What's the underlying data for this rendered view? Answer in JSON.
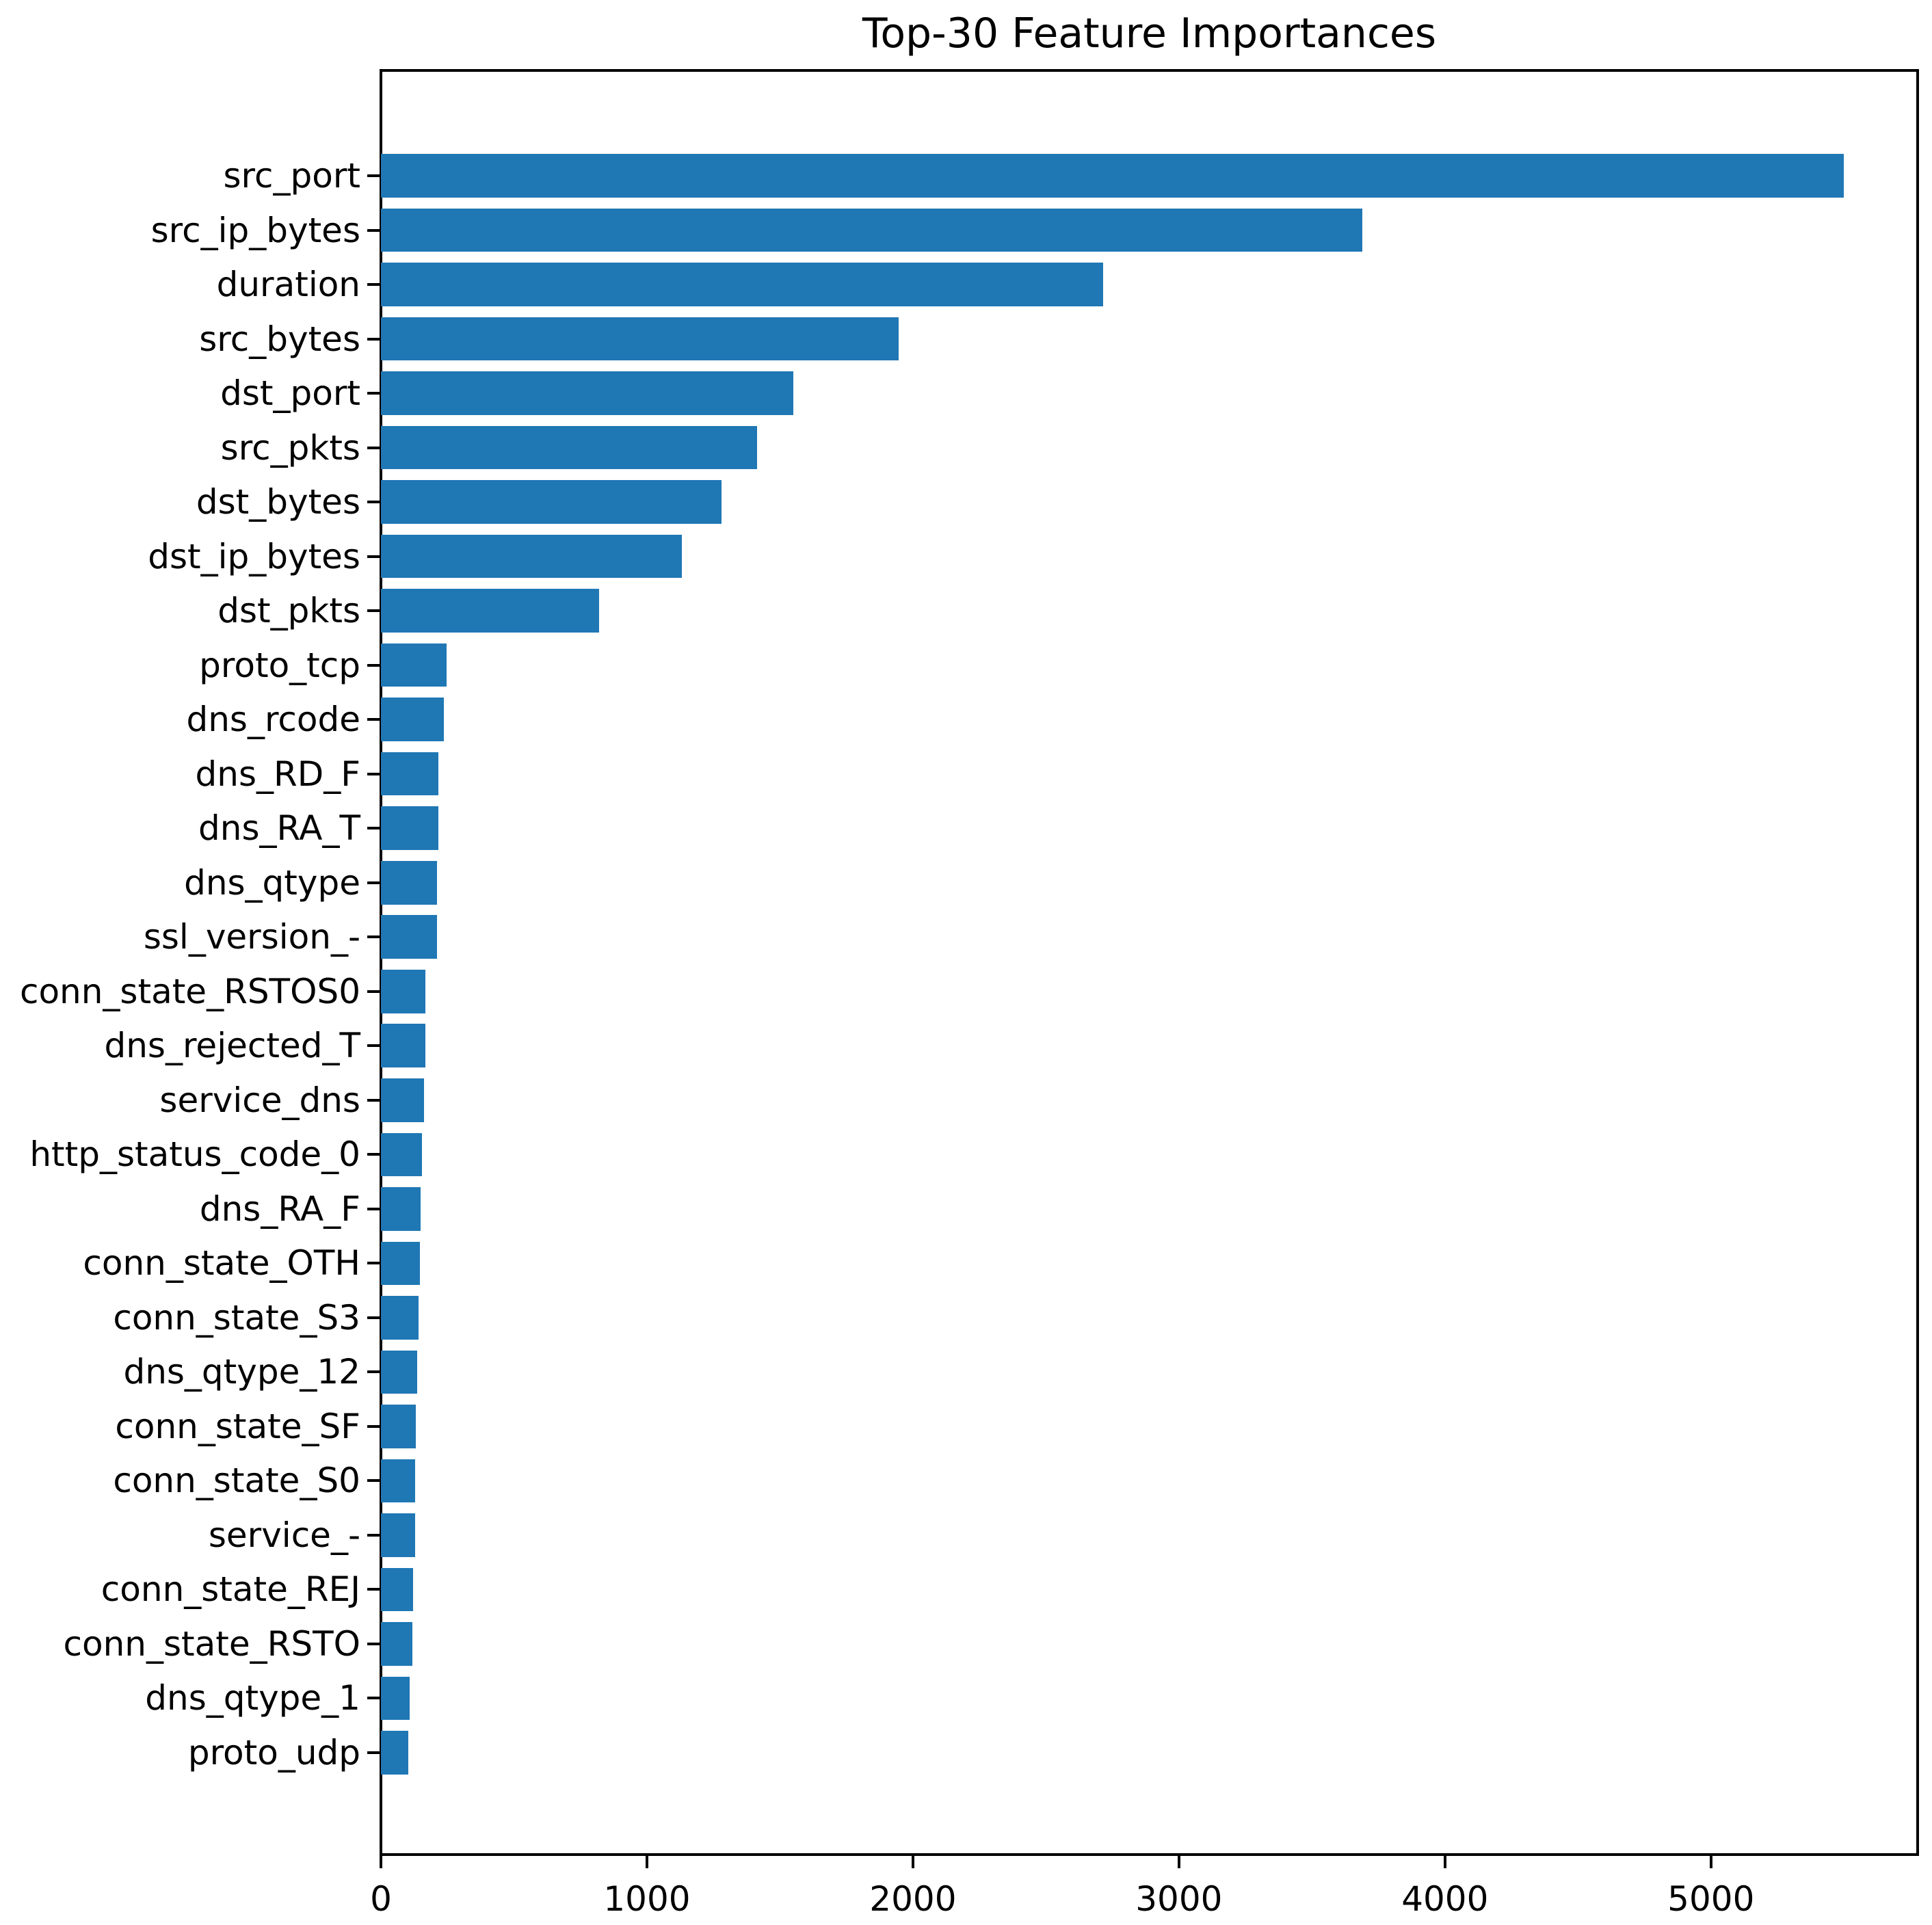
{
  "chart_data": {
    "type": "bar",
    "orientation": "horizontal",
    "title": "Top-30 Feature Importances",
    "xlabel": "",
    "ylabel": "",
    "categories": [
      "src_port",
      "src_ip_bytes",
      "duration",
      "src_bytes",
      "dst_port",
      "src_pkts",
      "dst_bytes",
      "dst_ip_bytes",
      "dst_pkts",
      "proto_tcp",
      "dns_rcode",
      "dns_RD_F",
      "dns_RA_T",
      "dns_qtype",
      "ssl_version_-",
      "conn_state_RSTOS0",
      "dns_rejected_T",
      "service_dns",
      "http_status_code_0",
      "dns_RA_F",
      "conn_state_OTH",
      "conn_state_S3",
      "dns_qtype_12",
      "conn_state_SF",
      "conn_state_S0",
      "service_-",
      "conn_state_REJ",
      "conn_state_RSTO",
      "dns_qtype_1",
      "proto_udp"
    ],
    "values": [
      5500,
      3690,
      2715,
      1945,
      1550,
      1415,
      1280,
      1130,
      820,
      248,
      237,
      217,
      215,
      212,
      210,
      168,
      166,
      161,
      155,
      148,
      146,
      141,
      135,
      131,
      129,
      128,
      121,
      118,
      108,
      103
    ],
    "xlim": [
      0,
      5777
    ],
    "xticks": [
      0,
      1000,
      2000,
      3000,
      4000,
      5000
    ],
    "xtick_labels": [
      "0",
      "1000",
      "2000",
      "3000",
      "4000",
      "5000"
    ],
    "bar_color": "#1f77b4",
    "axis_color": "#000000",
    "background_color": "#ffffff",
    "grid": false,
    "legend": "none"
  }
}
